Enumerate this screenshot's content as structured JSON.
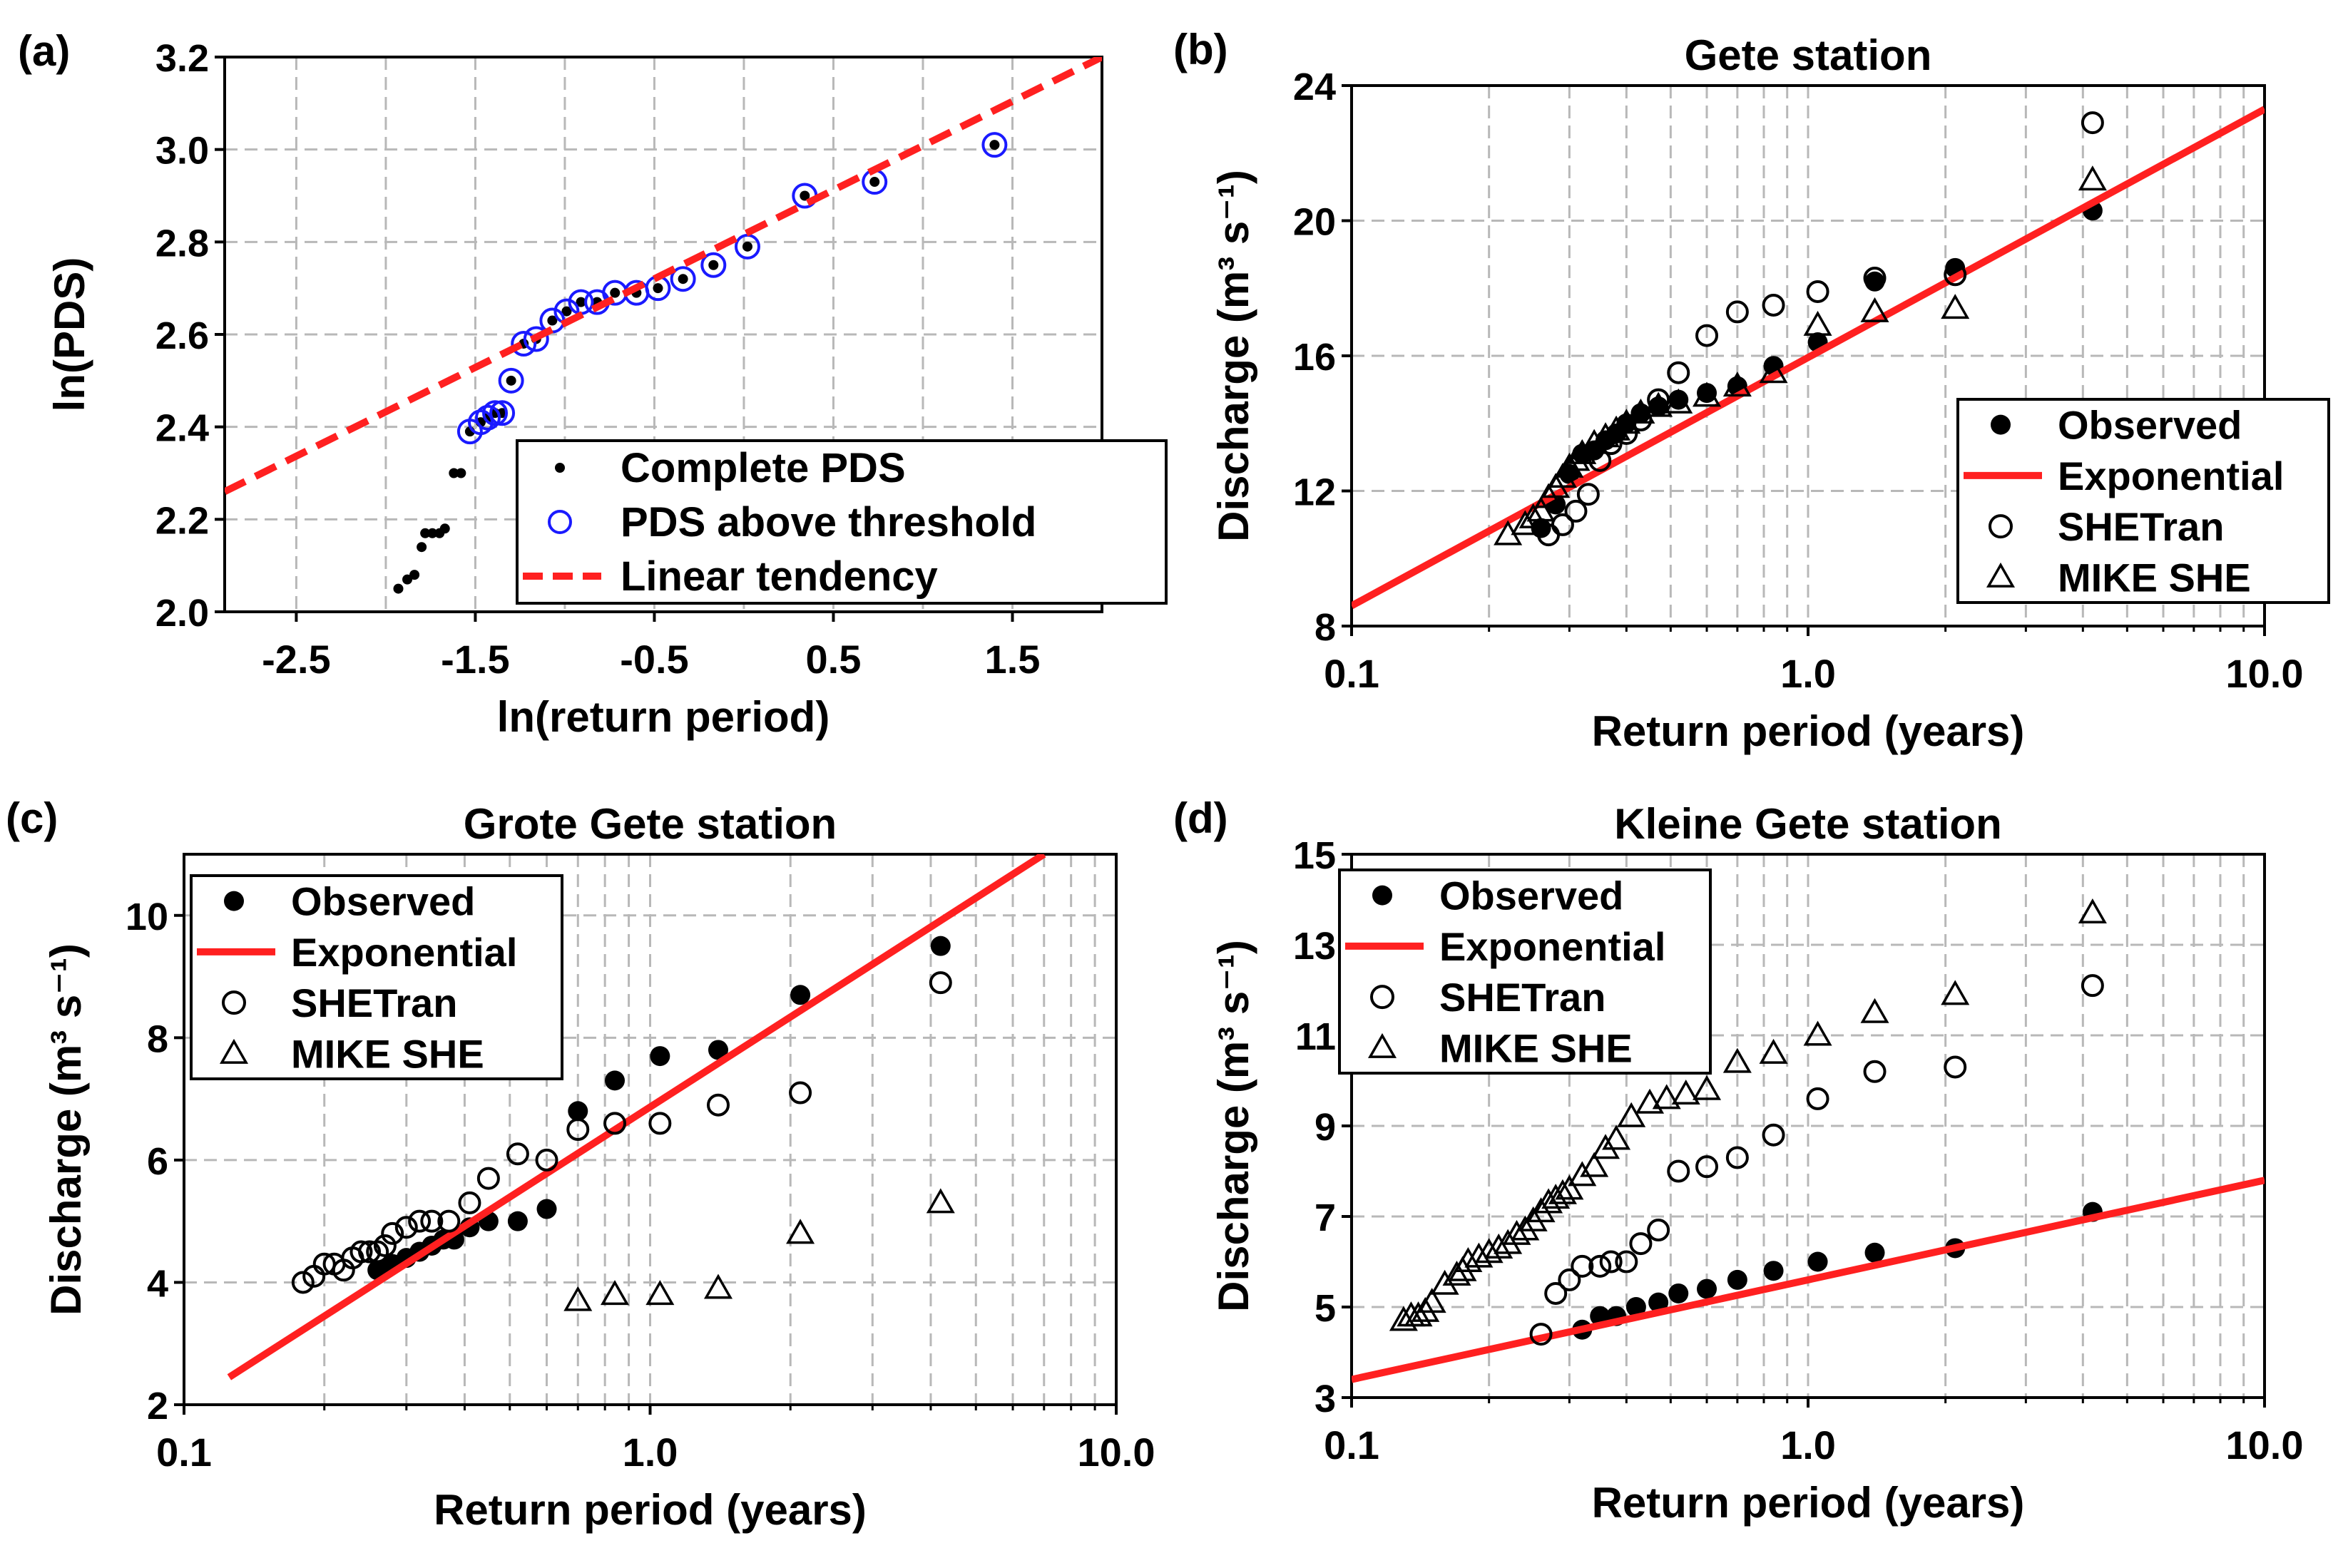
{
  "chart_data": [
    {
      "id": "a",
      "panel_label": "(a)",
      "type": "scatter",
      "title": "",
      "xlabel": "ln(return period)",
      "ylabel": "ln(PDS)",
      "xscale": "linear",
      "xlim": [
        -2.9,
        2.0
      ],
      "ylim": [
        2.0,
        3.2
      ],
      "xticks": [
        -2.5,
        -1.5,
        -0.5,
        0.5,
        1.5
      ],
      "xtick_labels": [
        "-2.5",
        "-1.5",
        "-0.5",
        "0.5",
        "1.5"
      ],
      "yticks": [
        2.0,
        2.2,
        2.4,
        2.6,
        2.8,
        3.0,
        3.2
      ],
      "ytick_labels": [
        "2.0",
        "2.2",
        "2.4",
        "2.6",
        "2.8",
        "3.0",
        "3.2"
      ],
      "grid": true,
      "legend_position": "bottom-right",
      "colors": {
        "threshold": "#1a1aff",
        "trend": "#ff2020",
        "points": "#000000"
      },
      "series": [
        {
          "name": "Complete PDS",
          "style": "dot",
          "x": [
            -1.93,
            -1.88,
            -1.84,
            -1.8,
            -1.78,
            -1.74,
            -1.7,
            -1.67,
            -1.62,
            -1.58,
            -1.53,
            -1.47,
            -1.43,
            -1.39,
            -1.35,
            -1.3,
            -1.23,
            -1.16,
            -1.07,
            -0.99,
            -0.91,
            -0.82,
            -0.72,
            -0.6,
            -0.48,
            -0.34,
            -0.17,
            0.02,
            0.34,
            0.73,
            1.4
          ],
          "y": [
            2.05,
            2.07,
            2.08,
            2.14,
            2.17,
            2.17,
            2.17,
            2.18,
            2.3,
            2.3,
            2.39,
            2.41,
            2.42,
            2.43,
            2.43,
            2.5,
            2.58,
            2.59,
            2.63,
            2.65,
            2.67,
            2.67,
            2.69,
            2.69,
            2.7,
            2.72,
            2.75,
            2.79,
            2.9,
            2.93,
            3.01
          ]
        },
        {
          "name": "PDS above threshold",
          "style": "open-circle",
          "x": [
            -1.53,
            -1.47,
            -1.43,
            -1.39,
            -1.35,
            -1.3,
            -1.23,
            -1.16,
            -1.07,
            -0.99,
            -0.91,
            -0.82,
            -0.72,
            -0.6,
            -0.48,
            -0.34,
            -0.17,
            0.02,
            0.34,
            0.73,
            1.4
          ],
          "y": [
            2.39,
            2.41,
            2.42,
            2.43,
            2.43,
            2.5,
            2.58,
            2.59,
            2.63,
            2.65,
            2.67,
            2.67,
            2.69,
            2.69,
            2.7,
            2.72,
            2.75,
            2.79,
            2.9,
            2.93,
            3.01
          ]
        },
        {
          "name": "Linear tendency",
          "style": "dashed-line",
          "x": [
            -2.9,
            2.0
          ],
          "y": [
            2.26,
            3.2
          ]
        }
      ]
    },
    {
      "id": "b",
      "panel_label": "(b)",
      "type": "scatter",
      "title": "Gete station",
      "xlabel": "Return period (years)",
      "ylabel": "Discharge  (m³ s⁻¹)",
      "xscale": "log",
      "xlim": [
        0.1,
        10.0
      ],
      "ylim": [
        8,
        24
      ],
      "xtick_labels": [
        "0.1",
        "1.0",
        "10.0"
      ],
      "yticks": [
        8,
        12,
        16,
        20,
        24
      ],
      "ytick_labels": [
        "8",
        "12",
        "16",
        "20",
        "24"
      ],
      "grid": true,
      "legend_position": "bottom-right",
      "colors": {
        "exponential": "#ff2020"
      },
      "series": [
        {
          "name": "Observed",
          "style": "filled-circle",
          "x": [
            0.26,
            0.28,
            0.3,
            0.32,
            0.34,
            0.36,
            0.38,
            0.4,
            0.43,
            0.47,
            0.52,
            0.6,
            0.7,
            0.84,
            1.05,
            1.4,
            2.1,
            4.2
          ],
          "y": [
            10.9,
            11.6,
            12.5,
            13.1,
            13.2,
            13.5,
            13.7,
            14.0,
            14.3,
            14.5,
            14.7,
            14.9,
            15.1,
            15.7,
            16.4,
            18.2,
            18.6,
            20.3
          ]
        },
        {
          "name": "Exponential",
          "style": "line",
          "x": [
            0.1,
            10.0
          ],
          "y": [
            8.6,
            23.3
          ]
        },
        {
          "name": "SHETran",
          "style": "open-circle",
          "x": [
            0.27,
            0.29,
            0.31,
            0.33,
            0.35,
            0.37,
            0.4,
            0.43,
            0.47,
            0.52,
            0.6,
            0.7,
            0.84,
            1.05,
            1.4,
            2.1,
            4.2
          ],
          "y": [
            10.7,
            11.0,
            11.4,
            11.9,
            12.9,
            13.4,
            13.7,
            14.1,
            14.7,
            15.5,
            16.6,
            17.3,
            17.5,
            17.9,
            18.3,
            18.4,
            22.9
          ]
        },
        {
          "name": "MIKE SHE",
          "style": "open-triangle",
          "x": [
            0.22,
            0.24,
            0.25,
            0.26,
            0.27,
            0.28,
            0.29,
            0.3,
            0.31,
            0.32,
            0.34,
            0.36,
            0.38,
            0.4,
            0.43,
            0.47,
            0.52,
            0.6,
            0.7,
            0.84,
            1.05,
            1.4,
            2.1,
            4.2
          ],
          "y": [
            10.7,
            11.0,
            11.2,
            11.4,
            11.8,
            12.1,
            12.4,
            12.7,
            12.9,
            13.1,
            13.4,
            13.6,
            13.8,
            14.0,
            14.3,
            14.5,
            14.6,
            14.8,
            15.1,
            15.5,
            16.9,
            17.3,
            17.4,
            21.2
          ]
        }
      ]
    },
    {
      "id": "c",
      "panel_label": "(c)",
      "type": "scatter",
      "title": "Grote Gete station",
      "xlabel": "Return period (years)",
      "ylabel": "Discharge  (m³ s⁻¹)",
      "xscale": "log",
      "xlim": [
        0.1,
        10.0
      ],
      "ylim": [
        2,
        11
      ],
      "xtick_labels": [
        "0.1",
        "1.0",
        "10.0"
      ],
      "yticks": [
        2,
        4,
        6,
        8,
        10
      ],
      "ytick_labels": [
        "2",
        "4",
        "6",
        "8",
        "10"
      ],
      "grid": true,
      "legend_position": "top-left",
      "colors": {
        "exponential": "#ff2020"
      },
      "series": [
        {
          "name": "Observed",
          "style": "filled-circle",
          "x": [
            0.26,
            0.28,
            0.3,
            0.32,
            0.34,
            0.36,
            0.38,
            0.41,
            0.45,
            0.52,
            0.6,
            0.7,
            0.84,
            1.05,
            1.4,
            2.1,
            4.2
          ],
          "y": [
            4.2,
            4.3,
            4.4,
            4.5,
            4.6,
            4.7,
            4.7,
            4.9,
            5.0,
            5.0,
            5.2,
            6.8,
            7.3,
            7.7,
            7.8,
            8.7,
            9.5
          ]
        },
        {
          "name": "Exponential",
          "style": "line",
          "x": [
            0.125,
            7.0
          ],
          "y": [
            2.45,
            11.0
          ]
        },
        {
          "name": "SHETran",
          "style": "open-circle",
          "x": [
            0.18,
            0.19,
            0.2,
            0.21,
            0.22,
            0.23,
            0.24,
            0.25,
            0.26,
            0.27,
            0.28,
            0.3,
            0.32,
            0.34,
            0.37,
            0.41,
            0.45,
            0.52,
            0.6,
            0.7,
            0.84,
            1.05,
            1.4,
            2.1,
            4.2
          ],
          "y": [
            4.0,
            4.1,
            4.3,
            4.3,
            4.2,
            4.4,
            4.5,
            4.5,
            4.5,
            4.6,
            4.8,
            4.9,
            5.0,
            5.0,
            5.0,
            5.3,
            5.7,
            6.1,
            6.0,
            6.5,
            6.6,
            6.6,
            6.9,
            7.1,
            8.9
          ]
        },
        {
          "name": "MIKE SHE",
          "style": "open-triangle",
          "x": [
            0.7,
            0.84,
            1.05,
            1.4,
            2.1,
            4.2
          ],
          "y": [
            3.7,
            3.8,
            3.8,
            3.9,
            4.8,
            5.3
          ]
        }
      ]
    },
    {
      "id": "d",
      "panel_label": "(d)",
      "type": "scatter",
      "title": "Kleine  Gete station",
      "xlabel": "Return period (years)",
      "ylabel": "Discharge  (m³ s⁻¹)",
      "xscale": "log",
      "xlim": [
        0.1,
        10.0
      ],
      "ylim": [
        3,
        15
      ],
      "xtick_labels": [
        "0.1",
        "1.0",
        "10.0"
      ],
      "yticks": [
        3,
        5,
        7,
        9,
        11,
        13,
        15
      ],
      "ytick_labels": [
        "3",
        "5",
        "7",
        "9",
        "11",
        "13",
        "15"
      ],
      "grid": true,
      "legend_position": "top-left",
      "colors": {
        "exponential": "#ff2020"
      },
      "series": [
        {
          "name": "Observed",
          "style": "filled-circle",
          "x": [
            0.32,
            0.35,
            0.38,
            0.42,
            0.47,
            0.52,
            0.6,
            0.7,
            0.84,
            1.05,
            1.4,
            2.1,
            4.2
          ],
          "y": [
            4.5,
            4.8,
            4.8,
            5.0,
            5.1,
            5.3,
            5.4,
            5.6,
            5.8,
            6.0,
            6.2,
            6.3,
            7.1
          ]
        },
        {
          "name": "Exponential",
          "style": "line",
          "x": [
            0.1,
            10.0
          ],
          "y": [
            3.4,
            7.8
          ]
        },
        {
          "name": "SHETran",
          "style": "open-circle",
          "x": [
            0.26,
            0.28,
            0.3,
            0.32,
            0.35,
            0.37,
            0.4,
            0.43,
            0.47,
            0.52,
            0.6,
            0.7,
            0.84,
            1.05,
            1.4,
            2.1,
            4.2
          ],
          "y": [
            4.4,
            5.3,
            5.6,
            5.9,
            5.9,
            6.0,
            6.0,
            6.4,
            6.7,
            8.0,
            8.1,
            8.3,
            8.8,
            9.6,
            10.2,
            10.3,
            12.1
          ]
        },
        {
          "name": "MIKE SHE",
          "style": "open-triangle",
          "x": [
            0.13,
            0.135,
            0.14,
            0.145,
            0.15,
            0.16,
            0.17,
            0.175,
            0.18,
            0.19,
            0.2,
            0.21,
            0.22,
            0.23,
            0.24,
            0.25,
            0.26,
            0.27,
            0.28,
            0.29,
            0.3,
            0.32,
            0.34,
            0.36,
            0.38,
            0.41,
            0.45,
            0.49,
            0.54,
            0.6,
            0.7,
            0.84,
            1.05,
            1.4,
            2.1,
            4.2
          ],
          "y": [
            4.7,
            4.8,
            4.8,
            4.9,
            5.1,
            5.5,
            5.7,
            5.8,
            6.0,
            6.1,
            6.2,
            6.3,
            6.4,
            6.6,
            6.7,
            6.9,
            7.1,
            7.3,
            7.4,
            7.5,
            7.6,
            7.9,
            8.1,
            8.5,
            8.7,
            9.2,
            9.5,
            9.6,
            9.7,
            9.8,
            10.4,
            10.6,
            11.0,
            11.5,
            11.9,
            13.7
          ]
        }
      ]
    }
  ]
}
